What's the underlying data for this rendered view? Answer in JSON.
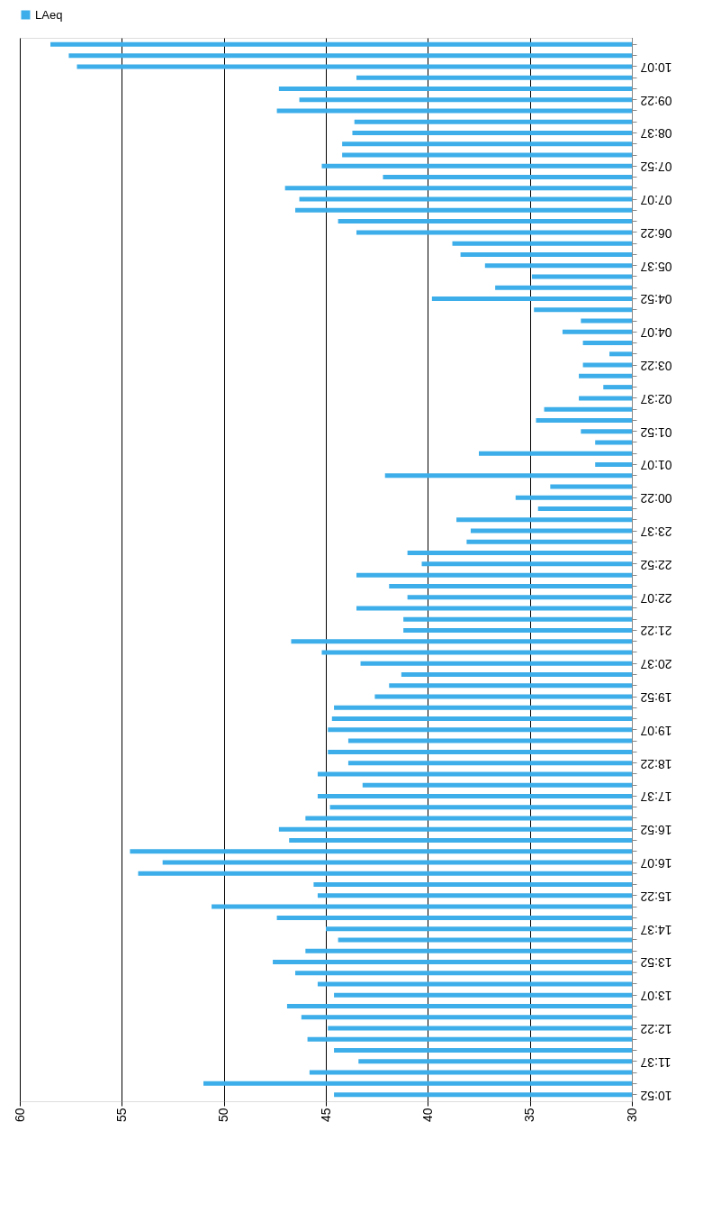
{
  "chart_data": {
    "type": "bar",
    "orientation": "horizontal",
    "categories": [
      null,
      null,
      "10:07",
      null,
      null,
      "09:22",
      null,
      null,
      "08:37",
      null,
      null,
      "07:52",
      null,
      null,
      "07:07",
      null,
      null,
      "06:22",
      null,
      null,
      "05:37",
      null,
      null,
      "04:52",
      null,
      null,
      "04:07",
      null,
      null,
      "03:22",
      null,
      null,
      "02:37",
      null,
      null,
      "01:52",
      null,
      null,
      "01:07",
      null,
      null,
      "00:22",
      null,
      null,
      "23:37",
      null,
      null,
      "22:52",
      null,
      null,
      "22:07",
      null,
      null,
      "21:22",
      null,
      null,
      "20:37",
      null,
      null,
      "19:52",
      null,
      null,
      "19:07",
      null,
      null,
      "18:22",
      null,
      null,
      "17:37",
      null,
      null,
      "16:52",
      null,
      null,
      "16:07",
      null,
      null,
      "15:22",
      null,
      null,
      "14:37",
      null,
      null,
      "13:52",
      null,
      null,
      "13:07",
      null,
      null,
      "12:22",
      null,
      null,
      "11:37",
      null,
      null,
      "10:52"
    ],
    "series": [
      {
        "name": "LAeq",
        "color": "#3daee9",
        "values": [
          58.5,
          57.6,
          57.2,
          43.5,
          47.3,
          46.3,
          47.4,
          43.6,
          43.7,
          44.2,
          44.2,
          45.2,
          42.2,
          47.0,
          46.3,
          46.5,
          44.4,
          43.5,
          38.8,
          38.4,
          37.2,
          34.9,
          36.7,
          39.8,
          34.8,
          32.5,
          33.4,
          32.4,
          31.1,
          32.4,
          32.6,
          31.4,
          32.6,
          34.3,
          34.7,
          32.5,
          31.8,
          37.5,
          31.8,
          42.1,
          34.0,
          35.7,
          34.6,
          38.6,
          37.9,
          38.1,
          41.0,
          40.3,
          43.5,
          41.9,
          41.0,
          43.5,
          41.2,
          41.2,
          46.7,
          45.2,
          43.3,
          41.3,
          41.9,
          42.6,
          44.6,
          44.7,
          44.9,
          43.9,
          44.9,
          43.9,
          45.4,
          43.2,
          45.4,
          44.8,
          46.0,
          47.3,
          46.8,
          54.6,
          53.0,
          54.2,
          45.6,
          45.4,
          50.6,
          47.4,
          45.0,
          44.4,
          46.0,
          47.6,
          46.5,
          45.4,
          44.6,
          46.9,
          46.2,
          44.9,
          45.9,
          44.6,
          43.4,
          45.8,
          51.0,
          44.6
        ]
      }
    ],
    "xlim": [
      60,
      30
    ],
    "xticks": [
      60,
      55,
      50,
      45,
      40,
      35,
      30
    ],
    "grid": "x",
    "legend": "top"
  }
}
